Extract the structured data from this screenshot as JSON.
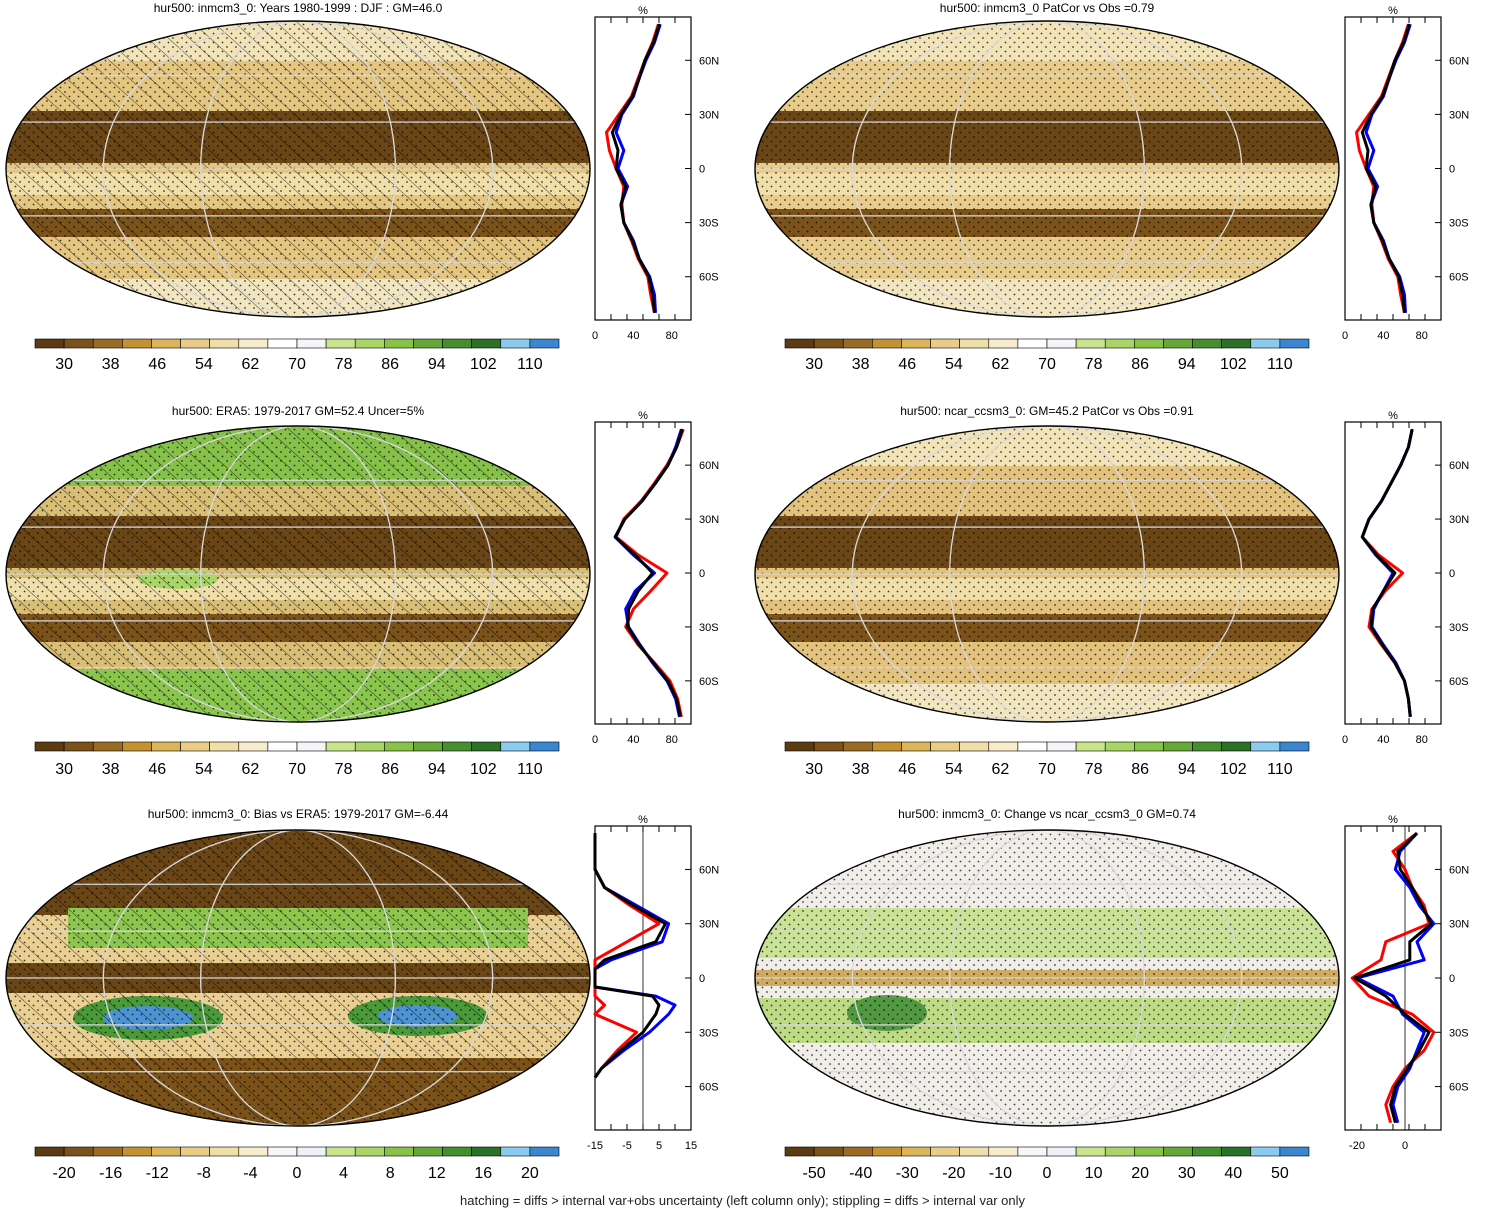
{
  "footnote": "hatching = diffs > internal var+obs uncertainty (left column only); stippling = diffs > internal var only",
  "colors": {
    "abs_scale": [
      "#5c3b12",
      "#7b5219",
      "#9a6b25",
      "#c49232",
      "#dcb55a",
      "#e9cd86",
      "#f1dfaa",
      "#f7eccb",
      "#ffffff",
      "#f4f4f9",
      "#c8e58e",
      "#a9d566",
      "#88c247",
      "#66a838",
      "#468f2f",
      "#2c7127",
      "#8ccbf0",
      "#3a87d0"
    ],
    "diff_scale": [
      "#5c3b12",
      "#7b5219",
      "#9a6b25",
      "#c49232",
      "#dcb55a",
      "#e9cd86",
      "#f1dfaa",
      "#f7eccb",
      "#f7f7fb",
      "#f0f0f8",
      "#c8e58e",
      "#a9d566",
      "#88c247",
      "#66a838",
      "#468f2f",
      "#2c7127",
      "#8ccbf0",
      "#3a87d0"
    ],
    "line_model": "#ff0000",
    "line_ref": "#0000ff",
    "line_mean": "#000000"
  },
  "chart_data": [
    {
      "id": "p1",
      "type": "map",
      "title": "hur500: inmcm3_0: Years 1980-1999 : DJF : GM=46.0",
      "colorbar": {
        "labels": [
          "30",
          "38",
          "46",
          "54",
          "62",
          "70",
          "78",
          "86",
          "94",
          "102",
          "110"
        ]
      },
      "zonal": {
        "unit": "%",
        "xlim": [
          0,
          100
        ],
        "xticks": [
          "0",
          "40",
          "80"
        ],
        "xtick_values": [
          0,
          40,
          80
        ],
        "lat_ticks": [
          "60N",
          "30N",
          "0",
          "30S",
          "60S"
        ],
        "lat_values": [
          60,
          30,
          0,
          -30,
          -60
        ],
        "lat": [
          80,
          70,
          60,
          50,
          40,
          30,
          20,
          10,
          0,
          -10,
          -20,
          -30,
          -40,
          -50,
          -60,
          -70,
          -80
        ],
        "series": [
          {
            "color": "#ff0000",
            "values": [
              66,
              60,
              52,
              45,
              38,
              25,
              12,
              15,
              22,
              30,
              28,
              30,
              38,
              45,
              55,
              58,
              62
            ]
          },
          {
            "color": "#0000ff",
            "values": [
              68,
              62,
              53,
              46,
              40,
              28,
              22,
              30,
              24,
              34,
              27,
              30,
              40,
              46,
              57,
              62,
              63
            ]
          },
          {
            "color": "#000000",
            "values": [
              67,
              61,
              52,
              46,
              39,
              27,
              18,
              24,
              22,
              32,
              27,
              30,
              39,
              46,
              56,
              60,
              62
            ]
          }
        ]
      }
    },
    {
      "id": "p2",
      "type": "map",
      "title": "hur500: inmcm3_0 PatCor vs Obs =0.79",
      "colorbar": {
        "labels": [
          "30",
          "38",
          "46",
          "54",
          "62",
          "70",
          "78",
          "86",
          "94",
          "102",
          "110"
        ]
      },
      "zonal": {
        "unit": "%",
        "xlim": [
          0,
          100
        ],
        "xticks": [
          "0",
          "40",
          "80"
        ],
        "xtick_values": [
          0,
          40,
          80
        ],
        "lat_ticks": [
          "60N",
          "30N",
          "0",
          "30S",
          "60S"
        ],
        "lat_values": [
          60,
          30,
          0,
          -30,
          -60
        ],
        "lat": [
          80,
          70,
          60,
          50,
          40,
          30,
          20,
          10,
          0,
          -10,
          -20,
          -30,
          -40,
          -50,
          -60,
          -70,
          -80
        ],
        "series": [
          {
            "color": "#ff0000",
            "values": [
              66,
              60,
              52,
              45,
              38,
              25,
              12,
              15,
              22,
              30,
              28,
              30,
              38,
              45,
              55,
              58,
              62
            ]
          },
          {
            "color": "#0000ff",
            "values": [
              68,
              62,
              53,
              46,
              40,
              28,
              22,
              30,
              24,
              34,
              27,
              30,
              40,
              46,
              57,
              62,
              63
            ]
          },
          {
            "color": "#000000",
            "values": [
              67,
              61,
              52,
              46,
              39,
              27,
              18,
              24,
              22,
              32,
              27,
              30,
              39,
              46,
              56,
              60,
              62
            ]
          }
        ]
      }
    },
    {
      "id": "p3",
      "type": "map",
      "title": "hur500: ERA5: 1979-2017 GM=52.4 Uncer=5%",
      "colorbar": {
        "labels": [
          "30",
          "38",
          "46",
          "54",
          "62",
          "70",
          "78",
          "86",
          "94",
          "102",
          "110"
        ]
      },
      "zonal": {
        "unit": "%",
        "xlim": [
          0,
          100
        ],
        "xticks": [
          "0",
          "40",
          "80"
        ],
        "xtick_values": [
          0,
          40,
          80
        ],
        "lat_ticks": [
          "60N",
          "30N",
          "0",
          "30S",
          "60S"
        ],
        "lat_values": [
          60,
          30,
          0,
          -30,
          -60
        ],
        "lat": [
          80,
          70,
          60,
          50,
          40,
          30,
          20,
          10,
          0,
          -10,
          -20,
          -30,
          -40,
          -50,
          -60,
          -70,
          -80
        ],
        "series": [
          {
            "color": "#ff0000",
            "values": [
              92,
              85,
              75,
              62,
              48,
              30,
              22,
              45,
              75,
              58,
              40,
              32,
              45,
              62,
              78,
              86,
              90
            ]
          },
          {
            "color": "#0000ff",
            "values": [
              90,
              84,
              76,
              63,
              49,
              31,
              21,
              40,
              62,
              42,
              32,
              35,
              47,
              60,
              75,
              84,
              88
            ]
          },
          {
            "color": "#000000",
            "values": [
              91,
              85,
              76,
              63,
              49,
              31,
              21,
              42,
              60,
              45,
              35,
              34,
              46,
              61,
              76,
              85,
              89
            ]
          }
        ]
      }
    },
    {
      "id": "p4",
      "type": "map",
      "title": "hur500: ncar_ccsm3_0: GM=45.2 PatCor vs Obs =0.91",
      "colorbar": {
        "labels": [
          "30",
          "38",
          "46",
          "54",
          "62",
          "70",
          "78",
          "86",
          "94",
          "102",
          "110"
        ]
      },
      "zonal": {
        "unit": "%",
        "xlim": [
          0,
          100
        ],
        "xticks": [
          "0",
          "40",
          "80"
        ],
        "xtick_values": [
          0,
          40,
          80
        ],
        "lat_ticks": [
          "60N",
          "30N",
          "0",
          "30S",
          "60S"
        ],
        "lat_values": [
          60,
          30,
          0,
          -30,
          -60
        ],
        "lat": [
          80,
          70,
          60,
          50,
          40,
          30,
          20,
          10,
          0,
          -10,
          -20,
          -30,
          -40,
          -50,
          -60,
          -70,
          -80
        ],
        "series": [
          {
            "color": "#ff0000",
            "values": [
              70,
              66,
              58,
              48,
              38,
              25,
              18,
              35,
              60,
              42,
              28,
              25,
              38,
              52,
              62,
              66,
              68
            ]
          },
          {
            "color": "#0000ff",
            "values": [
              70,
              66,
              58,
              48,
              38,
              25,
              18,
              32,
              50,
              40,
              30,
              28,
              40,
              53,
              62,
              66,
              68
            ]
          },
          {
            "color": "#000000",
            "values": [
              70,
              66,
              58,
              48,
              38,
              25,
              18,
              33,
              52,
              40,
              29,
              27,
              39,
              52,
              62,
              66,
              68
            ]
          }
        ]
      }
    },
    {
      "id": "p5",
      "type": "map",
      "title": "hur500: inmcm3_0: Bias vs ERA5: 1979-2017 GM=-6.44",
      "colorbar": {
        "labels": [
          "-20",
          "-16",
          "-12",
          "-8",
          "-4",
          "0",
          "4",
          "8",
          "12",
          "16",
          "20"
        ]
      },
      "zonal": {
        "unit": "%",
        "xlim": [
          -15,
          15
        ],
        "xticks": [
          "-15",
          "-5",
          "5",
          "15"
        ],
        "xtick_values": [
          -15,
          -5,
          5,
          15
        ],
        "zero_line": 0,
        "lat_ticks": [
          "60N",
          "30N",
          "0",
          "30S",
          "60S"
        ],
        "lat_values": [
          60,
          30,
          0,
          -30,
          -60
        ],
        "lat": [
          80,
          60,
          50,
          40,
          30,
          20,
          10,
          5,
          0,
          -5,
          -10,
          -15,
          -20,
          -30,
          -40,
          -50,
          -55
        ],
        "series": [
          {
            "color": "#ff0000",
            "values": [
              -15,
              -15,
              -12,
              -4,
              5,
              -5,
              -15,
              -20,
              -20,
              -20,
              -15,
              -12,
              -15,
              -2,
              -8,
              -13,
              -15
            ]
          },
          {
            "color": "#0000ff",
            "values": [
              -15,
              -15,
              -12,
              -2,
              8,
              6,
              -10,
              -20,
              -20,
              -15,
              4,
              10,
              8,
              2,
              -6,
              -13,
              -15
            ]
          },
          {
            "color": "#000000",
            "values": [
              -15,
              -15,
              -12,
              -3,
              7,
              4,
              -12,
              -20,
              -20,
              -17,
              3,
              5,
              4,
              0,
              -7,
              -13,
              -15
            ]
          }
        ]
      }
    },
    {
      "id": "p6",
      "type": "map",
      "title": "hur500: inmcm3_0: Change vs ncar_ccsm3_0 GM=0.74",
      "colorbar": {
        "labels": [
          "-50",
          "-40",
          "-30",
          "-20",
          "-10",
          "0",
          "10",
          "20",
          "30",
          "40",
          "50"
        ]
      },
      "zonal": {
        "unit": "%",
        "xlim": [
          -25,
          15
        ],
        "xticks": [
          "-20",
          "0"
        ],
        "xtick_values": [
          -20,
          0
        ],
        "zero_line": 0,
        "lat_ticks": [
          "60N",
          "30N",
          "0",
          "30S",
          "60S"
        ],
        "lat_values": [
          60,
          30,
          0,
          -30,
          -60
        ],
        "lat": [
          80,
          70,
          60,
          50,
          40,
          30,
          20,
          10,
          0,
          -10,
          -20,
          -30,
          -40,
          -50,
          -60,
          -70,
          -80
        ],
        "series": [
          {
            "color": "#ff0000",
            "values": [
              5,
              -5,
              0,
              3,
              8,
              10,
              -8,
              -10,
              -22,
              -15,
              3,
              12,
              8,
              0,
              -5,
              -8,
              -6
            ]
          },
          {
            "color": "#0000ff",
            "values": [
              5,
              -2,
              -4,
              2,
              6,
              12,
              5,
              8,
              -20,
              -5,
              -1,
              8,
              5,
              2,
              -3,
              -5,
              -3
            ]
          },
          {
            "color": "#000000",
            "values": [
              5,
              -3,
              -2,
              3,
              7,
              11,
              2,
              2,
              -21,
              -8,
              0,
              10,
              6,
              1,
              -4,
              -6,
              -4
            ]
          }
        ]
      }
    }
  ]
}
